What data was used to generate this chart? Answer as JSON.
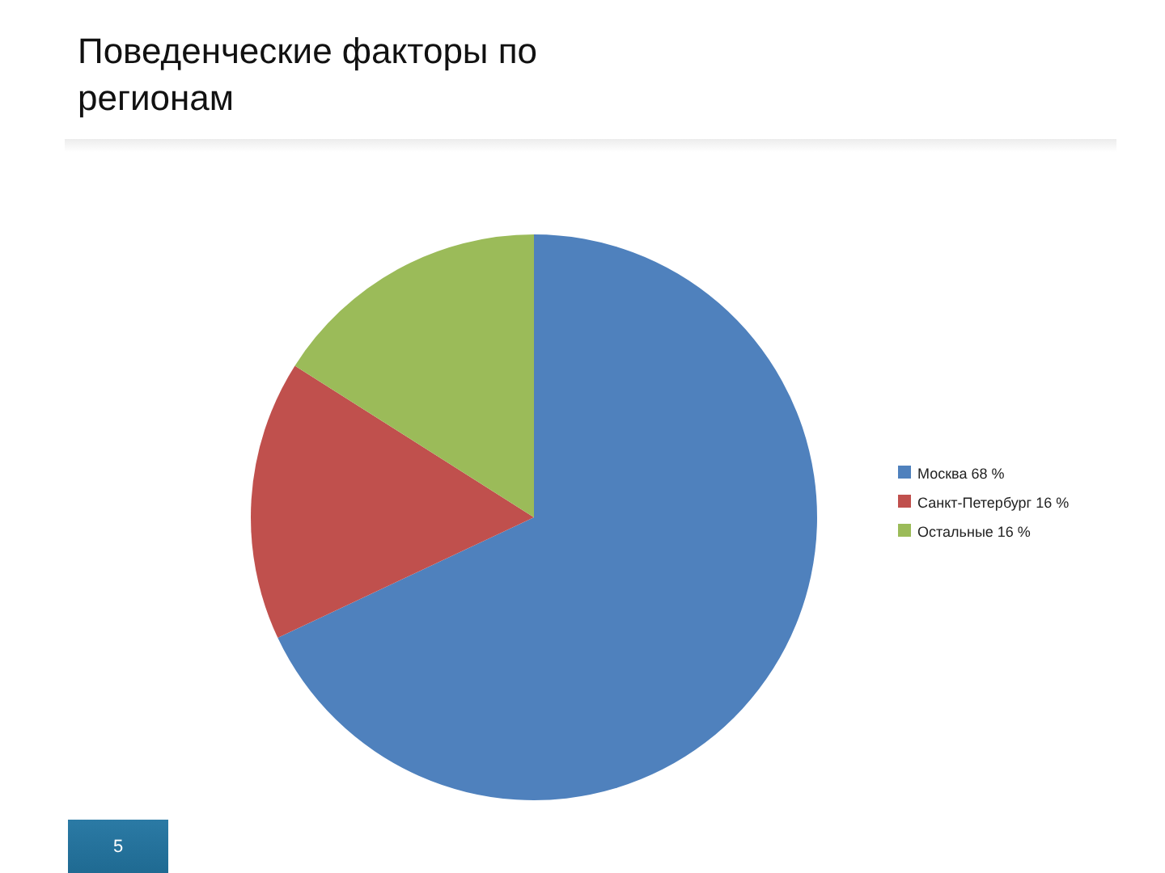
{
  "chart_data": {
    "type": "pie",
    "title": "Поведенческие факторы по регионам",
    "categories": [
      "Москва 68 %",
      "Санкт-Петербург 16 %",
      "Остальные 16 %"
    ],
    "values": [
      68,
      16,
      16
    ],
    "colors": [
      "#4f81bd",
      "#c0504d",
      "#9bbb59"
    ],
    "legend": "right",
    "annotations": [
      "5"
    ]
  }
}
